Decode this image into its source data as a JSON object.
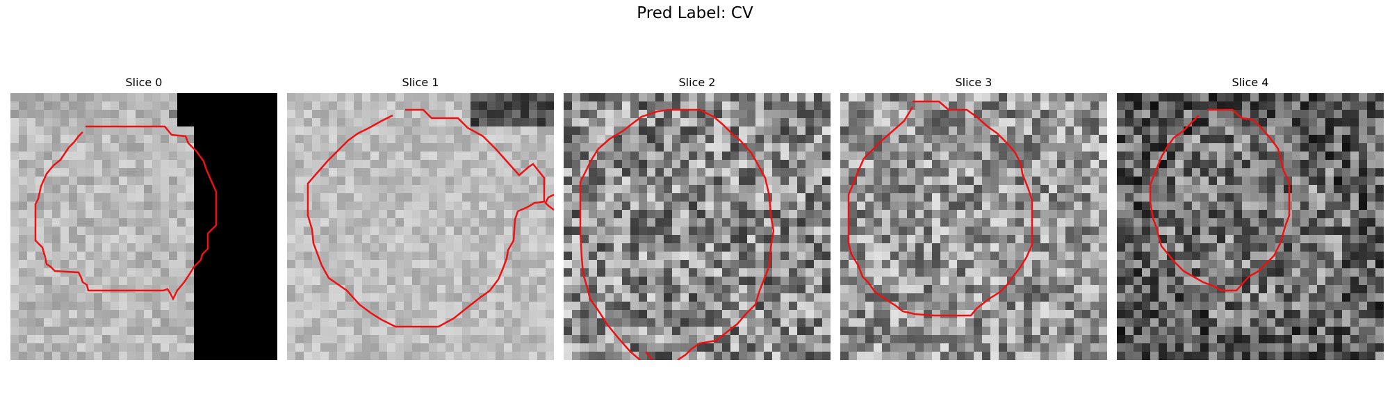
{
  "figure": {
    "suptitle": "Pred Label: CV",
    "contour_color": "#ee1111"
  },
  "slices": [
    {
      "title": "Slice 0",
      "style": "bright",
      "seed": 11
    },
    {
      "title": "Slice 1",
      "style": "bright2",
      "seed": 23
    },
    {
      "title": "Slice 2",
      "style": "noisy",
      "seed": 37
    },
    {
      "title": "Slice 3",
      "style": "noisy2",
      "seed": 41
    },
    {
      "title": "Slice 4",
      "style": "dark",
      "seed": 53
    }
  ]
}
